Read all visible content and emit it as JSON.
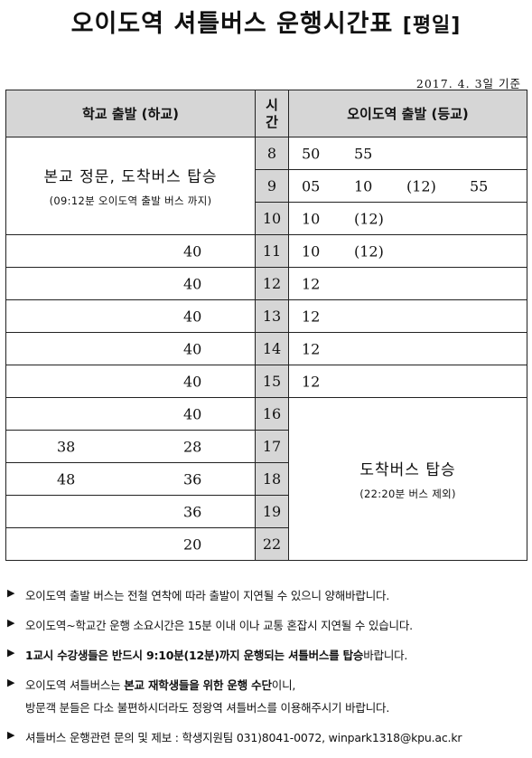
{
  "header": {
    "title": "오이도역 셔틀버스 운행시간표",
    "title_tag": "[평일]",
    "date": "2017. 4. 3일 기준"
  },
  "table": {
    "col_left": "학교 출발 (하교)",
    "col_hour_line1": "시",
    "col_hour_line2": "간",
    "col_right": "오이도역 출발 (등교)",
    "left_note_main": "본교 정문, 도착버스 탑승",
    "left_note_sub": "(09:12분 오이도역 출발 버스 까지)",
    "right_note_main": "도착버스 탑승",
    "right_note_sub": "(22:20분 버스 제외)",
    "rows": [
      {
        "hour": "8",
        "dep1": "",
        "dep2": "",
        "arr": [
          "50",
          "55",
          "",
          ""
        ]
      },
      {
        "hour": "9",
        "dep1": "",
        "dep2": "",
        "arr": [
          "05",
          "10",
          "(12)",
          "55"
        ]
      },
      {
        "hour": "10",
        "dep1": "",
        "dep2": "",
        "arr": [
          "10",
          "(12)",
          "",
          ""
        ]
      },
      {
        "hour": "11",
        "dep1": "",
        "dep2": "40",
        "arr": [
          "10",
          "(12)",
          "",
          ""
        ]
      },
      {
        "hour": "12",
        "dep1": "",
        "dep2": "40",
        "arr": [
          "12",
          "",
          "",
          ""
        ]
      },
      {
        "hour": "13",
        "dep1": "",
        "dep2": "40",
        "arr": [
          "12",
          "",
          "",
          ""
        ]
      },
      {
        "hour": "14",
        "dep1": "",
        "dep2": "40",
        "arr": [
          "12",
          "",
          "",
          ""
        ]
      },
      {
        "hour": "15",
        "dep1": "",
        "dep2": "40",
        "arr": [
          "12",
          "",
          "",
          ""
        ]
      },
      {
        "hour": "16",
        "dep1": "",
        "dep2": "40"
      },
      {
        "hour": "17",
        "dep1": "38",
        "dep2": "28"
      },
      {
        "hour": "18",
        "dep1": "48",
        "dep2": "36"
      },
      {
        "hour": "19",
        "dep1": "",
        "dep2": "36"
      },
      {
        "hour": "22",
        "dep1": "",
        "dep2": "20"
      }
    ]
  },
  "notes": {
    "bullet": "▶",
    "n1": "오이도역 출발 버스는 전철 연착에 따라 출발이 지연될 수 있으니 양해바랍니다.",
    "n2": "오이도역~학교간 운행 소요시간은 15분 이내 이나 교통 혼잡시 지연될 수 있습니다.",
    "n3_bold": "1교시 수강생들은 반드시 9:10분(12분)까지 운행되는 셔틀버스를 탑승",
    "n3_rest": "바랍니다.",
    "n4_pre": "오이도역 셔틀버스는 ",
    "n4_bold": "본교 재학생들을 위한 운행 수단",
    "n4_post": "이니,",
    "n4_cont": "방문객 분들은 다소 불편하시더라도 정왕역 셔틀버스를 이용해주시기 바랍니다.",
    "n5": "셔틀버스 운행관련 문의 및 제보 : 학생지원팀 031)8041-0072, winpark1318@kpu.ac.kr"
  }
}
